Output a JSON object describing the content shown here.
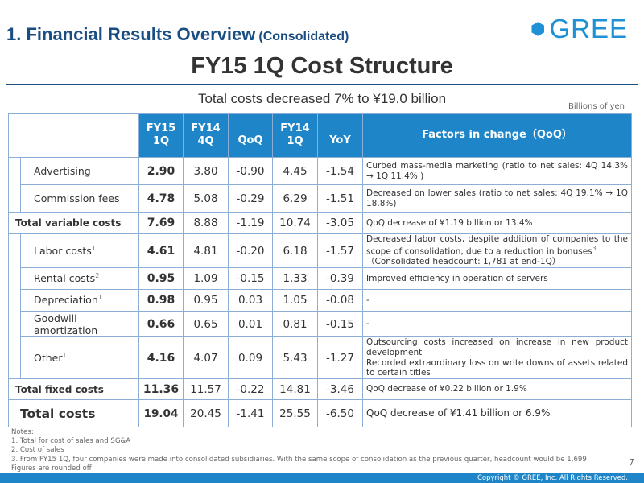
{
  "heading": {
    "main": "1. Financial Results Overview",
    "sub": "(Consolidated)"
  },
  "logo": {
    "text": "GREE",
    "icon": "gree-hexagon-icon",
    "color": "#1e90d6"
  },
  "title": "FY15 1Q Cost Structure",
  "subtitle": "Total costs decreased 7% to ¥19.0 billion",
  "unit": "Billions of yen",
  "table": {
    "headers": {
      "fy15_1q": [
        "FY15",
        "1Q"
      ],
      "fy14_4q": [
        "FY14",
        "4Q"
      ],
      "qoq": "QoQ",
      "fy14_1q": [
        "FY14",
        "1Q"
      ],
      "yoy": "YoY",
      "factors": "Factors in change（QoQ）"
    },
    "variable": [
      {
        "label": "Advertising",
        "sup": "",
        "fy15_1q": "2.90",
        "fy14_4q": "3.80",
        "qoq": "-0.90",
        "fy14_1q": "4.45",
        "yoy": "-1.54",
        "factor": "Curbed mass-media marketing (ratio to net sales: 4Q 14.3% → 1Q 11.4% )",
        "factor_sup": ""
      },
      {
        "label": "Commission fees",
        "sup": "",
        "fy15_1q": "4.78",
        "fy14_4q": "5.08",
        "qoq": "-0.29",
        "fy14_1q": "6.29",
        "yoy": "-1.51",
        "factor": "Decreased on lower sales (ratio to net sales: 4Q 19.1% → 1Q 18.8%)",
        "factor_sup": ""
      }
    ],
    "total_variable": {
      "label": "Total variable costs",
      "fy15_1q": "7.69",
      "fy14_4q": "8.88",
      "qoq": "-1.19",
      "fy14_1q": "10.74",
      "yoy": "-3.05",
      "factor": "QoQ decrease of ¥1.19 billion or 13.4%"
    },
    "fixed": [
      {
        "label": "Labor costs",
        "sup": "1",
        "fy15_1q": "4.61",
        "fy14_4q": "4.81",
        "qoq": "-0.20",
        "fy14_1q": "6.18",
        "yoy": "-1.57",
        "factor": "Decreased labor costs, despite addition of companies to the scope of consolidation, due to a reduction in bonuses",
        "factor_sup": "3",
        "factor2": "（Consolidated headcount: 1,781 at end-1Q）"
      },
      {
        "label": "Rental costs",
        "sup": "2",
        "fy15_1q": "0.95",
        "fy14_4q": "1.09",
        "qoq": "-0.15",
        "fy14_1q": "1.33",
        "yoy": "-0.39",
        "factor": "Improved efficiency in operation of servers",
        "factor_sup": ""
      },
      {
        "label": "Depreciation",
        "sup": "1",
        "fy15_1q": "0.98",
        "fy14_4q": "0.95",
        "qoq": "0.03",
        "fy14_1q": "1.05",
        "yoy": "-0.08",
        "factor": "-",
        "factor_sup": ""
      },
      {
        "label": "Goodwill amortization",
        "sup": "",
        "fy15_1q": "0.66",
        "fy14_4q": "0.65",
        "qoq": "0.01",
        "fy14_1q": "0.81",
        "yoy": "-0.15",
        "factor": "-",
        "factor_sup": ""
      },
      {
        "label": "Other",
        "sup": "1",
        "fy15_1q": "4.16",
        "fy14_4q": "4.07",
        "qoq": "0.09",
        "fy14_1q": "5.43",
        "yoy": "-1.27",
        "factor": "Outsourcing costs increased on increase in new product development",
        "factor_sup": "",
        "factor2": "Recorded extraordinary loss on write downs of assets related to certain titles"
      }
    ],
    "total_fixed": {
      "label": "Total fixed costs",
      "fy15_1q": "11.36",
      "fy14_4q": "11.57",
      "qoq": "-0.22",
      "fy14_1q": "14.81",
      "yoy": "-3.46",
      "factor": "QoQ decrease of ¥0.22 billion or 1.9%"
    },
    "total": {
      "label": "Total costs",
      "fy15_1q": "19.04",
      "fy14_4q": "20.45",
      "qoq": "-1.41",
      "fy14_1q": "25.55",
      "yoy": "-6.50",
      "factor": "QoQ decrease of ¥1.41 billion or 6.9%"
    }
  },
  "notes": [
    "Notes:",
    "1. Total for cost of sales and SG&A",
    "2. Cost of sales",
    "3. From FY15 1Q, four companies were made into consolidated subsidiaries. With the same scope of consolidation as the previous quarter, headcount would be 1,699",
    "Figures are rounded off"
  ],
  "page_number": "7",
  "copyright": "Copyright © GREE, Inc. All Rights Reserved.",
  "colors": {
    "header_blue": "#1e86c8",
    "heading_navy": "#1a4e83",
    "border": "#8aaed6"
  }
}
